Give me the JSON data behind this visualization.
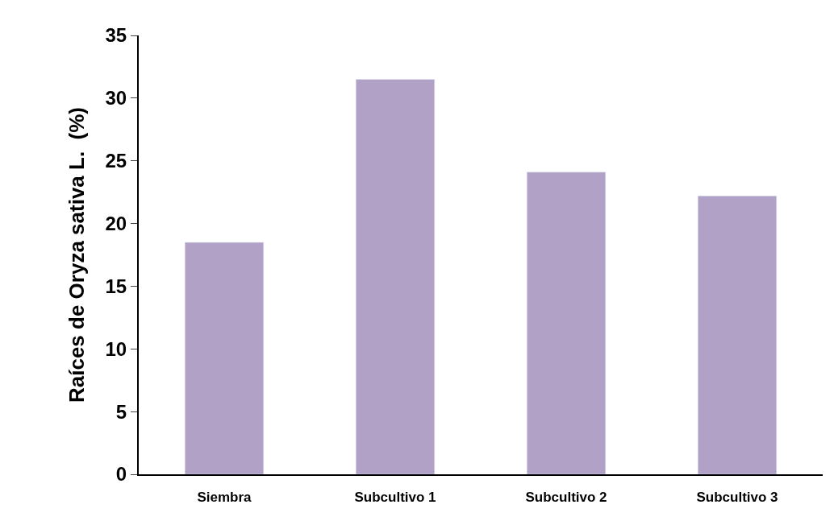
{
  "chart_data": {
    "type": "bar",
    "ylabel": "Raíces de Oryza sativa L.  (%)",
    "categories": [
      "Siembra",
      "Subcultivo 1",
      "Subcultivo 2",
      "Subcultivo 3"
    ],
    "values": [
      18.5,
      31.5,
      24.1,
      22.2
    ],
    "color": "#b1a1c7",
    "ylim": [
      0,
      35
    ],
    "yticks": [
      0,
      5,
      10,
      15,
      20,
      25,
      30,
      35
    ]
  }
}
